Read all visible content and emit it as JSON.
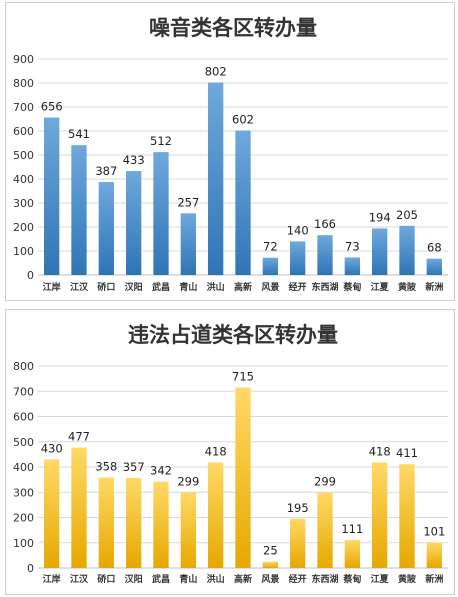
{
  "chart_data": [
    {
      "type": "bar",
      "title": "噪音类各区转办量",
      "categories": [
        "江岸",
        "江汉",
        "硚口",
        "汉阳",
        "武昌",
        "青山",
        "洪山",
        "高新",
        "风景",
        "经开",
        "东西湖",
        "蔡甸",
        "江夏",
        "黄陂",
        "新洲"
      ],
      "values": [
        656,
        541,
        387,
        433,
        512,
        257,
        802,
        602,
        72,
        140,
        166,
        73,
        194,
        205,
        68
      ],
      "ylim": [
        0,
        900
      ],
      "yticks": [
        0,
        100,
        200,
        300,
        400,
        500,
        600,
        700,
        800,
        900
      ],
      "grid": true,
      "colors": {
        "top": "#6fa8dc",
        "bottom": "#2e75b6"
      }
    },
    {
      "type": "bar",
      "title": "违法占道类各区转办量",
      "categories": [
        "江岸",
        "江汉",
        "硚口",
        "汉阳",
        "武昌",
        "青山",
        "洪山",
        "高新",
        "风景",
        "经开",
        "东西湖",
        "蔡甸",
        "江夏",
        "黄陂",
        "新洲"
      ],
      "values": [
        430,
        477,
        358,
        357,
        342,
        299,
        418,
        715,
        25,
        195,
        299,
        111,
        418,
        411,
        101
      ],
      "ylim": [
        0,
        800
      ],
      "yticks": [
        0,
        100,
        200,
        300,
        400,
        500,
        600,
        700,
        800
      ],
      "grid": true,
      "colors": {
        "top": "#ffd966",
        "bottom": "#e6a800"
      }
    }
  ]
}
